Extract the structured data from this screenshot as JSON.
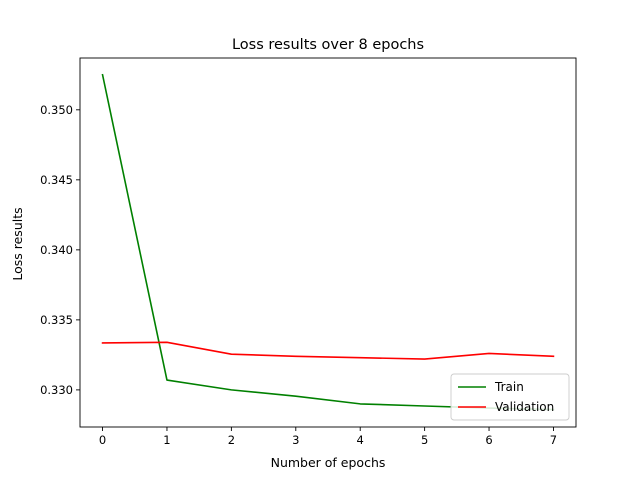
{
  "chart_data": {
    "type": "line",
    "title": "Loss results over 8 epochs",
    "xlabel": "Number of epochs",
    "ylabel": "Loss results",
    "x": [
      0,
      1,
      2,
      3,
      4,
      5,
      6,
      7
    ],
    "xlim": [
      -0.35,
      7.35
    ],
    "ylim": [
      0.32735,
      0.3537
    ],
    "xticks": [
      0,
      1,
      2,
      3,
      4,
      5,
      6,
      7
    ],
    "yticks": [
      0.33,
      0.335,
      0.34,
      0.345,
      0.35
    ],
    "ytick_labels": [
      "0.330",
      "0.335",
      "0.340",
      "0.345",
      "0.350"
    ],
    "grid": false,
    "legend_position": "bottom-right",
    "series": [
      {
        "name": "Train",
        "color": "#008000",
        "values": [
          0.3525,
          0.3307,
          0.33,
          0.32955,
          0.329,
          0.32885,
          0.3287,
          0.3286
        ]
      },
      {
        "name": "Validation",
        "color": "#ff0000",
        "values": [
          0.33335,
          0.3334,
          0.33255,
          0.3324,
          0.3323,
          0.3322,
          0.3326,
          0.3324
        ]
      }
    ]
  }
}
